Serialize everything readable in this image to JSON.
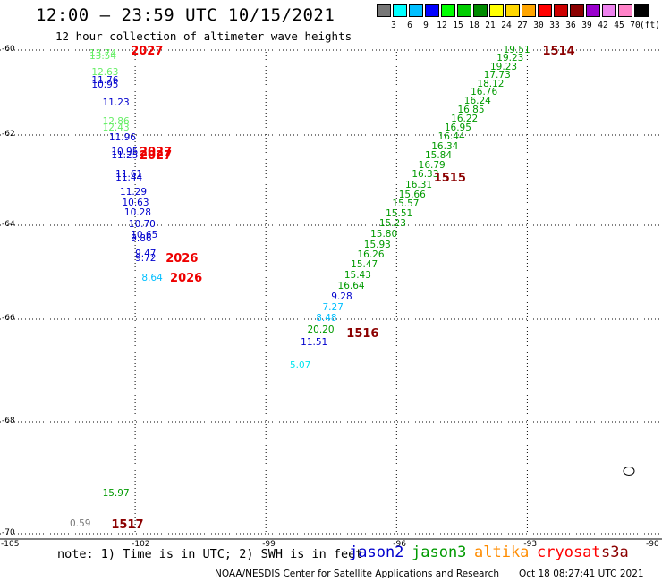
{
  "header": {
    "title": "12:00 – 23:59 UTC 10/15/2021",
    "subtitle": "12 hour collection of altimeter wave heights"
  },
  "colorbar": {
    "colors": [
      "#777777",
      "#00ffff",
      "#00bfff",
      "#0000ff",
      "#00ff00",
      "#00cd00",
      "#008b00",
      "#ffff00",
      "#ffd700",
      "#ffa500",
      "#ff0000",
      "#cd0000",
      "#8b0000",
      "#9a00cd",
      "#ee82ee",
      "#ff82c8",
      "#000000"
    ],
    "labels": [
      "3",
      "6",
      "9",
      "12",
      "15",
      "18",
      "21",
      "24",
      "27",
      "30",
      "33",
      "36",
      "39",
      "42",
      "45",
      "70"
    ],
    "unit": "(ft)"
  },
  "axes": {
    "lat_labels": [
      "-60",
      "-62",
      "-64",
      "-66",
      "-68",
      "-70"
    ],
    "lon_labels": [
      "-105",
      "-102",
      "-99",
      "-96",
      "-93",
      "-90"
    ]
  },
  "satellite_colors": {
    "jason2": "#0000cd",
    "jason3": "#009a00",
    "altika": "#ff8c00",
    "cryosat": "#ff0000",
    "s3a": "#8b0000"
  },
  "observations": [
    {
      "v": "13.54",
      "c": "#66ee66",
      "lon": -103.05,
      "lat": -60.14
    },
    {
      "v": "13.74",
      "c": "#66ee66",
      "lon": -103.05,
      "lat": -60.08
    },
    {
      "v": "12.63",
      "c": "#66ee66",
      "lon": -103.0,
      "lat": -60.52
    },
    {
      "v": "11.76",
      "c": "#0000cd",
      "lon": -103.0,
      "lat": -60.72
    },
    {
      "v": "10.95",
      "c": "#0000cd",
      "lon": -103.0,
      "lat": -60.82
    },
    {
      "v": "11.23",
      "c": "#0000cd",
      "lon": -102.75,
      "lat": -61.25
    },
    {
      "v": "12.86",
      "c": "#66ee66",
      "lon": -102.75,
      "lat": -61.68
    },
    {
      "v": "12.43",
      "c": "#66ee66",
      "lon": -102.75,
      "lat": -61.83
    },
    {
      "v": "11.96",
      "c": "#0000cd",
      "lon": -102.6,
      "lat": -62.05
    },
    {
      "v": "10.95",
      "c": "#0000cd",
      "lon": -102.55,
      "lat": -62.38
    },
    {
      "v": "11.25",
      "c": "#0000cd",
      "lon": -102.55,
      "lat": -62.46
    },
    {
      "v": "11.61",
      "c": "#0000cd",
      "lon": -102.45,
      "lat": -62.88
    },
    {
      "v": "11.44",
      "c": "#0000cd",
      "lon": -102.45,
      "lat": -62.96
    },
    {
      "v": "11.29",
      "c": "#0000cd",
      "lon": -102.35,
      "lat": -63.26
    },
    {
      "v": "10.63",
      "c": "#0000cd",
      "lon": -102.3,
      "lat": -63.5
    },
    {
      "v": "10.28",
      "c": "#0000cd",
      "lon": -102.25,
      "lat": -63.73
    },
    {
      "v": "10.70",
      "c": "#0000cd",
      "lon": -102.15,
      "lat": -63.98
    },
    {
      "v": "10.65",
      "c": "#0000cd",
      "lon": -102.1,
      "lat": -64.2
    },
    {
      "v": "9.86",
      "c": "#0000cd",
      "lon": -102.1,
      "lat": -64.28
    },
    {
      "v": "9.47",
      "c": "#0000cd",
      "lon": -102.0,
      "lat": -64.6
    },
    {
      "v": "9.72",
      "c": "#0000cd",
      "lon": -102.0,
      "lat": -64.7
    },
    {
      "v": "8.64",
      "c": "#00bfff",
      "lon": -101.85,
      "lat": -65.12
    },
    {
      "v": "19.51",
      "c": "#009a00",
      "lon": -93.55,
      "lat": -60.0
    },
    {
      "v": "19.23",
      "c": "#009a00",
      "lon": -93.7,
      "lat": -60.19
    },
    {
      "v": "19.23",
      "c": "#009a00",
      "lon": -93.85,
      "lat": -60.39
    },
    {
      "v": "17.73",
      "c": "#009a00",
      "lon": -94.0,
      "lat": -60.58
    },
    {
      "v": "18.12",
      "c": "#009a00",
      "lon": -94.15,
      "lat": -60.79
    },
    {
      "v": "16.76",
      "c": "#009a00",
      "lon": -94.3,
      "lat": -60.99
    },
    {
      "v": "16.24",
      "c": "#009a00",
      "lon": -94.45,
      "lat": -61.2
    },
    {
      "v": "16.85",
      "c": "#009a00",
      "lon": -94.6,
      "lat": -61.41
    },
    {
      "v": "16.22",
      "c": "#009a00",
      "lon": -94.75,
      "lat": -61.62
    },
    {
      "v": "16.95",
      "c": "#009a00",
      "lon": -94.9,
      "lat": -61.83
    },
    {
      "v": "16.44",
      "c": "#009a00",
      "lon": -95.05,
      "lat": -62.04
    },
    {
      "v": "16.34",
      "c": "#009a00",
      "lon": -95.2,
      "lat": -62.25
    },
    {
      "v": "15.84",
      "c": "#009a00",
      "lon": -95.35,
      "lat": -62.46
    },
    {
      "v": "16.79",
      "c": "#009a00",
      "lon": -95.5,
      "lat": -62.67
    },
    {
      "v": "16.33",
      "c": "#009a00",
      "lon": -95.65,
      "lat": -62.88
    },
    {
      "v": "16.31",
      "c": "#009a00",
      "lon": -95.8,
      "lat": -63.1
    },
    {
      "v": "15.66",
      "c": "#009a00",
      "lon": -95.95,
      "lat": -63.32
    },
    {
      "v": "15.57",
      "c": "#009a00",
      "lon": -96.1,
      "lat": -63.53
    },
    {
      "v": "15.51",
      "c": "#009a00",
      "lon": -96.25,
      "lat": -63.75
    },
    {
      "v": "15.23",
      "c": "#009a00",
      "lon": -96.4,
      "lat": -63.97
    },
    {
      "v": "15.80",
      "c": "#009a00",
      "lon": -96.6,
      "lat": -64.19
    },
    {
      "v": "15.93",
      "c": "#009a00",
      "lon": -96.75,
      "lat": -64.41
    },
    {
      "v": "16.26",
      "c": "#009a00",
      "lon": -96.9,
      "lat": -64.62
    },
    {
      "v": "15.47",
      "c": "#009a00",
      "lon": -97.05,
      "lat": -64.84
    },
    {
      "v": "15.43",
      "c": "#009a00",
      "lon": -97.2,
      "lat": -65.07
    },
    {
      "v": "16.64",
      "c": "#009a00",
      "lon": -97.35,
      "lat": -65.3
    },
    {
      "v": "9.28",
      "c": "#0000cd",
      "lon": -97.5,
      "lat": -65.52
    },
    {
      "v": "7.27",
      "c": "#00bfff",
      "lon": -97.7,
      "lat": -65.75
    },
    {
      "v": "8.48",
      "c": "#00bfff",
      "lon": -97.85,
      "lat": -65.98
    },
    {
      "v": "20.20",
      "c": "#009a00",
      "lon": -98.05,
      "lat": -66.21
    },
    {
      "v": "11.51",
      "c": "#0000cd",
      "lon": -98.2,
      "lat": -66.45
    },
    {
      "v": "5.07",
      "c": "#00e5ee",
      "lon": -98.45,
      "lat": -66.9
    },
    {
      "v": "15.97",
      "c": "#009a00",
      "lon": -102.75,
      "lat": -69.28
    },
    {
      "v": "0.59",
      "c": "#777777",
      "lon": -103.5,
      "lat": -69.82
    }
  ],
  "pass_labels": [
    {
      "t": "2027",
      "c": "#ee0000",
      "lon": -102.1,
      "lat": -60.03
    },
    {
      "t": "2027",
      "c": "#ee0000",
      "lon": -101.9,
      "lat": -62.38
    },
    {
      "t": "2027",
      "c": "#ee0000",
      "lon": -101.9,
      "lat": -62.46
    },
    {
      "t": "2026",
      "c": "#ee0000",
      "lon": -101.3,
      "lat": -64.7
    },
    {
      "t": "2026",
      "c": "#ee0000",
      "lon": -101.2,
      "lat": -65.12
    },
    {
      "t": "1514",
      "c": "#8b0000",
      "lon": -92.65,
      "lat": -60.03
    },
    {
      "t": "1515",
      "c": "#8b0000",
      "lon": -95.15,
      "lat": -62.95
    },
    {
      "t": "1516",
      "c": "#8b0000",
      "lon": -97.15,
      "lat": -66.28
    },
    {
      "t": "1517",
      "c": "#8b0000",
      "lon": -102.55,
      "lat": -69.84
    }
  ],
  "footer": {
    "note": "note: 1) Time is in UTC; 2) SWH is in feet",
    "legend": [
      {
        "name": "jason2",
        "c": "#0000cd"
      },
      {
        "name": "jason3",
        "c": "#009a00"
      },
      {
        "name": "altika",
        "c": "#ff8c00"
      },
      {
        "name": "cryosat",
        "c": "#ff0000"
      },
      {
        "name": "s3a",
        "c": "#8b0000"
      }
    ],
    "credit": "NOAA/NESDIS Center for Satellite Applications and Research",
    "timestamp": "Oct 18 08:27:41 UTC 2021"
  }
}
